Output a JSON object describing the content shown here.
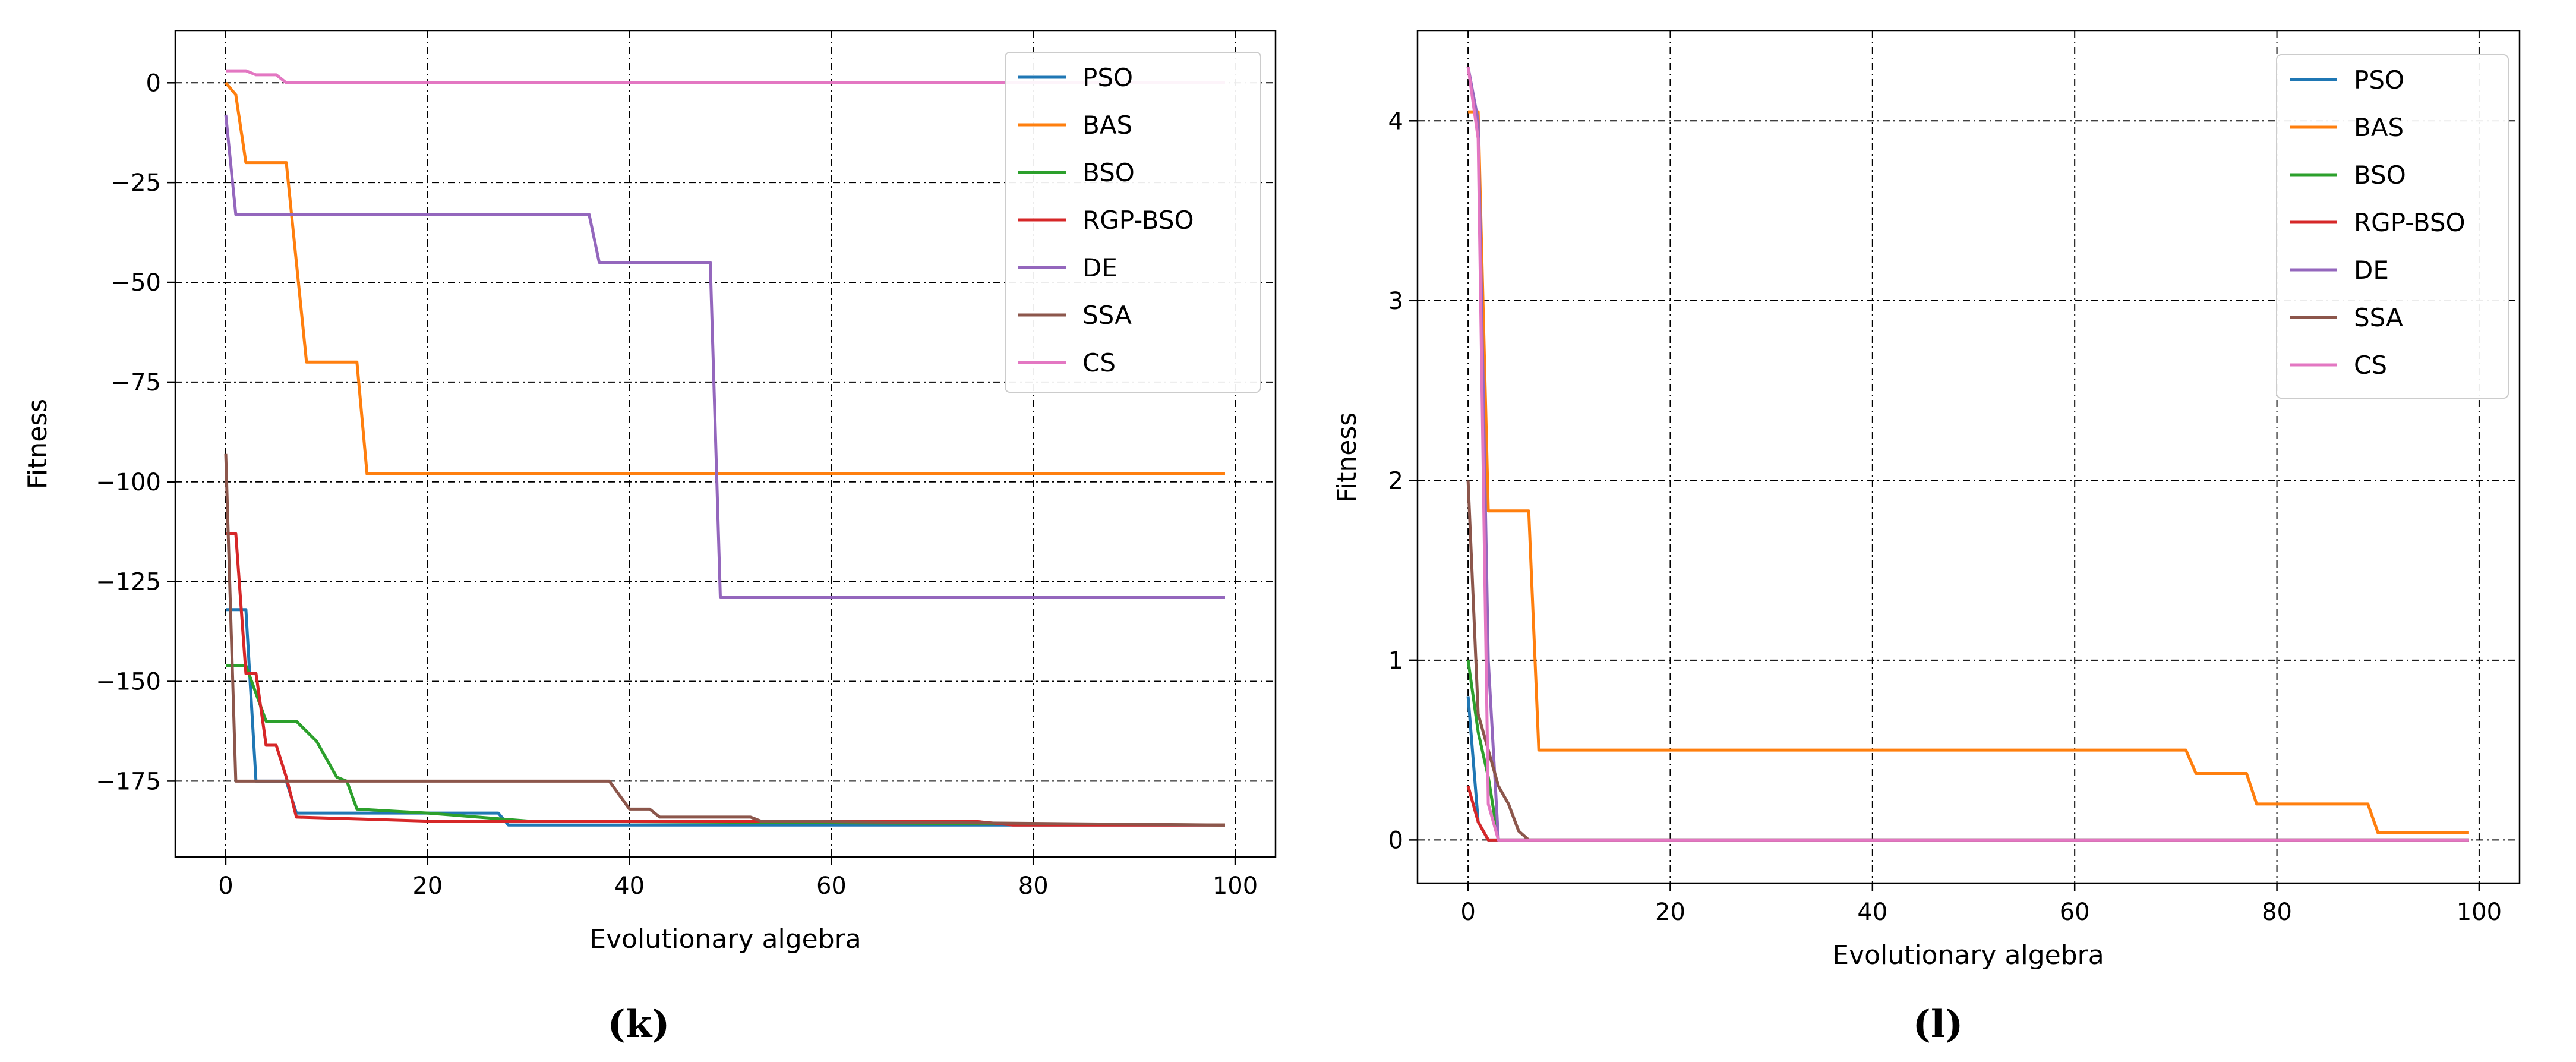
{
  "chart_data": [
    {
      "type": "line",
      "caption": "(k)",
      "xlabel": "Evolutionary algebra",
      "ylabel": "Fitness",
      "xlim": [
        -5,
        104
      ],
      "ylim": [
        -194,
        13
      ],
      "xticks": [
        0,
        20,
        40,
        60,
        80,
        100
      ],
      "xtick_labels": [
        "0",
        "20",
        "40",
        "60",
        "80",
        "100"
      ],
      "yticks": [
        0,
        -25,
        -50,
        -75,
        -100,
        -125,
        -150,
        -175
      ],
      "ytick_labels": [
        "0",
        "−25",
        "−50",
        "−75",
        "−100",
        "−125",
        "−150",
        "−175"
      ],
      "grid": true,
      "legend": "top-right",
      "series": [
        {
          "name": "PSO",
          "color": "#1f77b4",
          "points": [
            [
              0,
              -132
            ],
            [
              2,
              -132
            ],
            [
              3,
              -175
            ],
            [
              6,
              -175
            ],
            [
              7,
              -183
            ],
            [
              27,
              -183
            ],
            [
              28,
              -186
            ],
            [
              99,
              -186
            ]
          ]
        },
        {
          "name": "BAS",
          "color": "#ff7f0e",
          "points": [
            [
              0,
              0
            ],
            [
              1,
              -3
            ],
            [
              2,
              -20
            ],
            [
              6,
              -20
            ],
            [
              8,
              -70
            ],
            [
              13,
              -70
            ],
            [
              14,
              -98
            ],
            [
              99,
              -98
            ]
          ]
        },
        {
          "name": "BSO",
          "color": "#2ca02c",
          "points": [
            [
              0,
              -146
            ],
            [
              2,
              -146
            ],
            [
              4,
              -160
            ],
            [
              7,
              -160
            ],
            [
              9,
              -165
            ],
            [
              11,
              -174
            ],
            [
              12,
              -175
            ],
            [
              13,
              -182
            ],
            [
              20,
              -183
            ],
            [
              30,
              -185
            ],
            [
              99,
              -186
            ]
          ]
        },
        {
          "name": "RGP-BSO",
          "color": "#d62728",
          "points": [
            [
              0,
              -113
            ],
            [
              1,
              -113
            ],
            [
              2,
              -148
            ],
            [
              3,
              -148
            ],
            [
              4,
              -166
            ],
            [
              5,
              -166
            ],
            [
              6,
              -174
            ],
            [
              7,
              -184
            ],
            [
              20,
              -185
            ],
            [
              60,
              -185
            ],
            [
              74,
              -185
            ],
            [
              78,
              -186
            ],
            [
              99,
              -186
            ]
          ]
        },
        {
          "name": "DE",
          "color": "#9467bd",
          "points": [
            [
              0,
              -8
            ],
            [
              1,
              -33
            ],
            [
              36,
              -33
            ],
            [
              37,
              -45
            ],
            [
              48,
              -45
            ],
            [
              49,
              -129
            ],
            [
              99,
              -129
            ]
          ]
        },
        {
          "name": "SSA",
          "color": "#8c564b",
          "points": [
            [
              0,
              -93
            ],
            [
              1,
              -175
            ],
            [
              38,
              -175
            ],
            [
              40,
              -182
            ],
            [
              42,
              -182
            ],
            [
              43,
              -184
            ],
            [
              52,
              -184
            ],
            [
              53,
              -185
            ],
            [
              99,
              -186
            ]
          ]
        },
        {
          "name": "CS",
          "color": "#e377c2",
          "points": [
            [
              0,
              3
            ],
            [
              2,
              3
            ],
            [
              3,
              2
            ],
            [
              5,
              2
            ],
            [
              6,
              0
            ],
            [
              99,
              0
            ]
          ]
        }
      ]
    },
    {
      "type": "line",
      "caption": "(l)",
      "xlabel": "Evolutionary algebra",
      "ylabel": "Fitness",
      "xlim": [
        -5,
        104
      ],
      "ylim": [
        -0.24,
        4.5
      ],
      "xticks": [
        0,
        20,
        40,
        60,
        80,
        100
      ],
      "xtick_labels": [
        "0",
        "20",
        "40",
        "60",
        "80",
        "100"
      ],
      "yticks": [
        0,
        1,
        2,
        3,
        4
      ],
      "ytick_labels": [
        "0",
        "1",
        "2",
        "3",
        "4"
      ],
      "grid": true,
      "legend": "top-right",
      "series": [
        {
          "name": "PSO",
          "color": "#1f77b4",
          "points": [
            [
              0,
              0.8
            ],
            [
              1,
              0.1
            ],
            [
              2,
              0
            ],
            [
              99,
              0
            ]
          ]
        },
        {
          "name": "BAS",
          "color": "#ff7f0e",
          "points": [
            [
              0,
              4.05
            ],
            [
              1,
              4.05
            ],
            [
              2,
              1.83
            ],
            [
              6,
              1.83
            ],
            [
              7,
              0.5
            ],
            [
              71,
              0.5
            ],
            [
              72,
              0.37
            ],
            [
              77,
              0.37
            ],
            [
              78,
              0.2
            ],
            [
              89,
              0.2
            ],
            [
              90,
              0.04
            ],
            [
              99,
              0.04
            ]
          ]
        },
        {
          "name": "BSO",
          "color": "#2ca02c",
          "points": [
            [
              0,
              1.0
            ],
            [
              1,
              0.6
            ],
            [
              2,
              0.35
            ],
            [
              3,
              0
            ],
            [
              99,
              0
            ]
          ]
        },
        {
          "name": "RGP-BSO",
          "color": "#d62728",
          "points": [
            [
              0,
              0.3
            ],
            [
              1,
              0.1
            ],
            [
              2,
              0
            ],
            [
              99,
              0
            ]
          ]
        },
        {
          "name": "DE",
          "color": "#9467bd",
          "points": [
            [
              0,
              4.3
            ],
            [
              1,
              4.0
            ],
            [
              2,
              1.0
            ],
            [
              3,
              0
            ],
            [
              99,
              0
            ]
          ]
        },
        {
          "name": "SSA",
          "color": "#8c564b",
          "points": [
            [
              0,
              2.0
            ],
            [
              1,
              0.7
            ],
            [
              2,
              0.5
            ],
            [
              3,
              0.3
            ],
            [
              4,
              0.2
            ],
            [
              5,
              0.05
            ],
            [
              6,
              0
            ],
            [
              99,
              0
            ]
          ]
        },
        {
          "name": "CS",
          "color": "#e377c2",
          "points": [
            [
              0,
              4.3
            ],
            [
              1,
              3.9
            ],
            [
              2,
              0.2
            ],
            [
              3,
              0
            ],
            [
              99,
              0
            ]
          ]
        }
      ]
    }
  ]
}
